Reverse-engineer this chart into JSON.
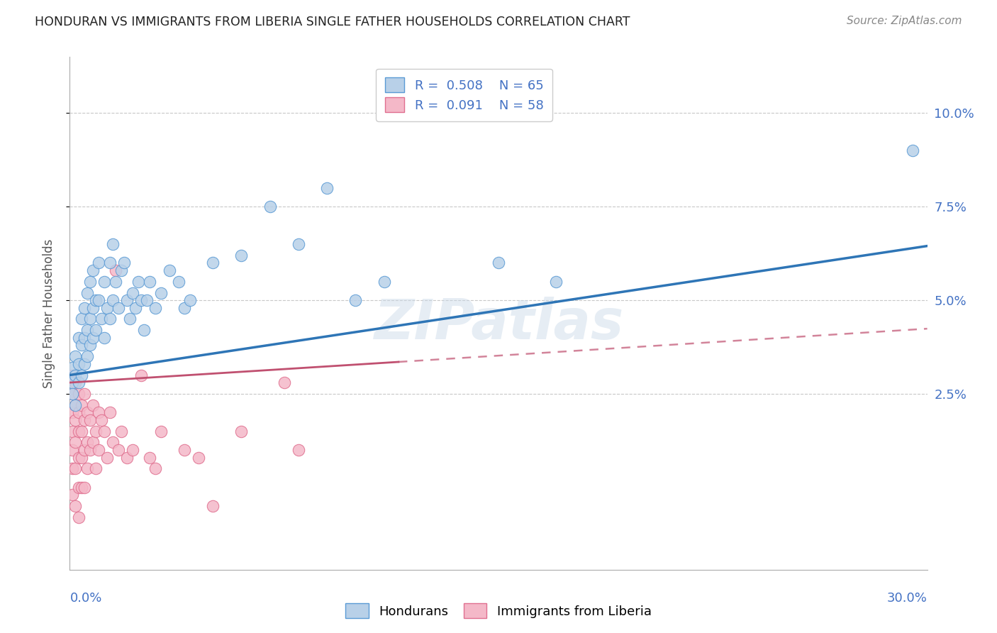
{
  "title": "HONDURAN VS IMMIGRANTS FROM LIBERIA SINGLE FATHER HOUSEHOLDS CORRELATION CHART",
  "source": "Source: ZipAtlas.com",
  "ylabel": "Single Father Households",
  "ytick_labels": [
    "2.5%",
    "5.0%",
    "7.5%",
    "10.0%"
  ],
  "ytick_values": [
    0.025,
    0.05,
    0.075,
    0.1
  ],
  "xlim": [
    0.0,
    0.3
  ],
  "ylim": [
    -0.022,
    0.115
  ],
  "legend_bottom": [
    "Hondurans",
    "Immigrants from Liberia"
  ],
  "honduran_color": "#b8d0e8",
  "honduran_edge": "#5b9bd5",
  "liberia_color": "#f4b8c8",
  "liberia_edge": "#e07090",
  "trendline_honduran": "#2e75b6",
  "trendline_liberia": "#c05070",
  "watermark": "ZIPatlas",
  "honduran_points": [
    [
      0.001,
      0.032
    ],
    [
      0.001,
      0.028
    ],
    [
      0.001,
      0.025
    ],
    [
      0.002,
      0.035
    ],
    [
      0.002,
      0.03
    ],
    [
      0.002,
      0.022
    ],
    [
      0.003,
      0.04
    ],
    [
      0.003,
      0.033
    ],
    [
      0.003,
      0.028
    ],
    [
      0.004,
      0.045
    ],
    [
      0.004,
      0.038
    ],
    [
      0.004,
      0.03
    ],
    [
      0.005,
      0.048
    ],
    [
      0.005,
      0.04
    ],
    [
      0.005,
      0.033
    ],
    [
      0.006,
      0.052
    ],
    [
      0.006,
      0.042
    ],
    [
      0.006,
      0.035
    ],
    [
      0.007,
      0.055
    ],
    [
      0.007,
      0.045
    ],
    [
      0.007,
      0.038
    ],
    [
      0.008,
      0.058
    ],
    [
      0.008,
      0.048
    ],
    [
      0.008,
      0.04
    ],
    [
      0.009,
      0.05
    ],
    [
      0.009,
      0.042
    ],
    [
      0.01,
      0.06
    ],
    [
      0.01,
      0.05
    ],
    [
      0.011,
      0.045
    ],
    [
      0.012,
      0.055
    ],
    [
      0.012,
      0.04
    ],
    [
      0.013,
      0.048
    ],
    [
      0.014,
      0.06
    ],
    [
      0.014,
      0.045
    ],
    [
      0.015,
      0.065
    ],
    [
      0.015,
      0.05
    ],
    [
      0.016,
      0.055
    ],
    [
      0.017,
      0.048
    ],
    [
      0.018,
      0.058
    ],
    [
      0.019,
      0.06
    ],
    [
      0.02,
      0.05
    ],
    [
      0.021,
      0.045
    ],
    [
      0.022,
      0.052
    ],
    [
      0.023,
      0.048
    ],
    [
      0.024,
      0.055
    ],
    [
      0.025,
      0.05
    ],
    [
      0.026,
      0.042
    ],
    [
      0.027,
      0.05
    ],
    [
      0.028,
      0.055
    ],
    [
      0.03,
      0.048
    ],
    [
      0.032,
      0.052
    ],
    [
      0.035,
      0.058
    ],
    [
      0.038,
      0.055
    ],
    [
      0.04,
      0.048
    ],
    [
      0.042,
      0.05
    ],
    [
      0.05,
      0.06
    ],
    [
      0.06,
      0.062
    ],
    [
      0.07,
      0.075
    ],
    [
      0.08,
      0.065
    ],
    [
      0.09,
      0.08
    ],
    [
      0.1,
      0.05
    ],
    [
      0.11,
      0.055
    ],
    [
      0.15,
      0.06
    ],
    [
      0.17,
      0.055
    ],
    [
      0.295,
      0.09
    ]
  ],
  "liberia_points": [
    [
      0.001,
      0.03
    ],
    [
      0.001,
      0.025
    ],
    [
      0.001,
      0.02
    ],
    [
      0.001,
      0.015
    ],
    [
      0.001,
      0.01
    ],
    [
      0.001,
      0.005
    ],
    [
      0.001,
      -0.002
    ],
    [
      0.002,
      0.028
    ],
    [
      0.002,
      0.022
    ],
    [
      0.002,
      0.018
    ],
    [
      0.002,
      0.012
    ],
    [
      0.002,
      0.005
    ],
    [
      0.002,
      -0.005
    ],
    [
      0.003,
      0.025
    ],
    [
      0.003,
      0.02
    ],
    [
      0.003,
      0.015
    ],
    [
      0.003,
      0.008
    ],
    [
      0.003,
      0.0
    ],
    [
      0.003,
      -0.008
    ],
    [
      0.004,
      0.022
    ],
    [
      0.004,
      0.015
    ],
    [
      0.004,
      0.008
    ],
    [
      0.004,
      0.0
    ],
    [
      0.005,
      0.025
    ],
    [
      0.005,
      0.018
    ],
    [
      0.005,
      0.01
    ],
    [
      0.005,
      0.0
    ],
    [
      0.006,
      0.02
    ],
    [
      0.006,
      0.012
    ],
    [
      0.006,
      0.005
    ],
    [
      0.007,
      0.018
    ],
    [
      0.007,
      0.01
    ],
    [
      0.008,
      0.022
    ],
    [
      0.008,
      0.012
    ],
    [
      0.009,
      0.015
    ],
    [
      0.009,
      0.005
    ],
    [
      0.01,
      0.02
    ],
    [
      0.01,
      0.01
    ],
    [
      0.011,
      0.018
    ],
    [
      0.012,
      0.015
    ],
    [
      0.013,
      0.008
    ],
    [
      0.014,
      0.02
    ],
    [
      0.015,
      0.012
    ],
    [
      0.016,
      0.058
    ],
    [
      0.017,
      0.01
    ],
    [
      0.018,
      0.015
    ],
    [
      0.02,
      0.008
    ],
    [
      0.022,
      0.01
    ],
    [
      0.025,
      0.03
    ],
    [
      0.028,
      0.008
    ],
    [
      0.03,
      0.005
    ],
    [
      0.032,
      0.015
    ],
    [
      0.04,
      0.01
    ],
    [
      0.045,
      0.008
    ],
    [
      0.05,
      -0.005
    ],
    [
      0.06,
      0.015
    ],
    [
      0.075,
      0.028
    ],
    [
      0.08,
      0.01
    ]
  ]
}
